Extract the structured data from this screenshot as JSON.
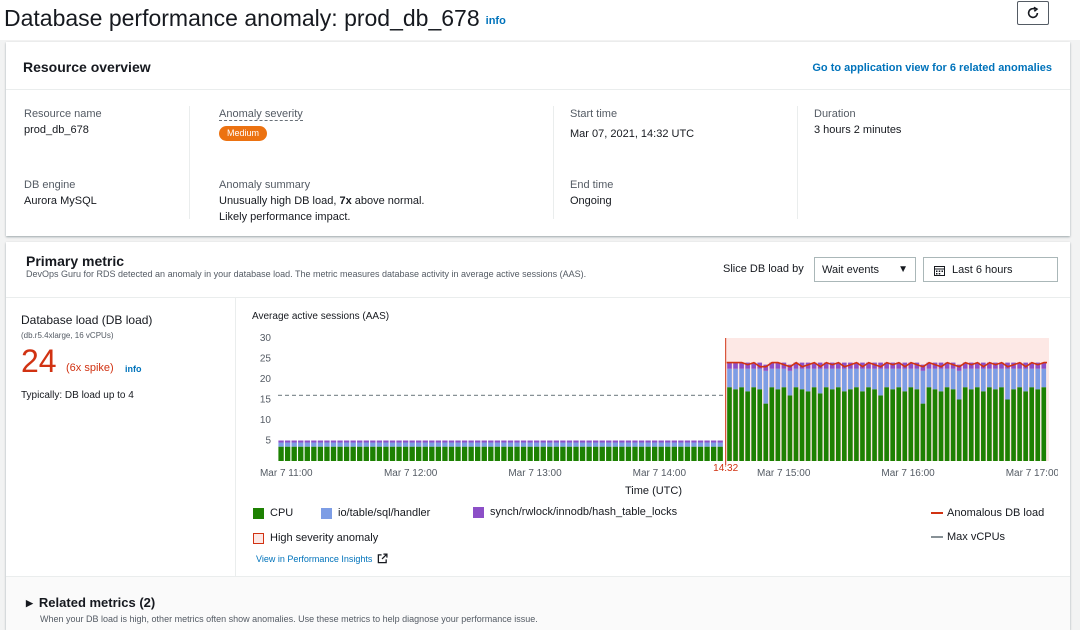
{
  "page": {
    "title": "Database performance anomaly: prod_db_678",
    "info": "info"
  },
  "overview": {
    "title": "Resource overview",
    "related_link": "Go to application view for 6 related anomalies",
    "resource_name_label": "Resource name",
    "resource_name": "prod_db_678",
    "db_engine_label": "DB engine",
    "db_engine": "Aurora MySQL",
    "severity_label": "Anomaly severity",
    "severity": "Medium",
    "summary_label": "Anomaly summary",
    "summary_pre": "Unusually high DB load, ",
    "summary_bold": "7x",
    "summary_post": " above normal.",
    "summary_line2": "Likely performance impact.",
    "start_label": "Start time",
    "start": "Mar 07, 2021, 14:32 UTC",
    "end_label": "End time",
    "end": "Ongoing",
    "duration_label": "Duration",
    "duration": "3 hours 2 minutes"
  },
  "primary": {
    "title": "Primary metric",
    "desc": "DevOps Guru for RDS detected an anomaly in your database load. The metric measures database activity in average active sessions (AAS).",
    "slice_label": "Slice DB load by",
    "slice_value": "Wait events",
    "range_value": "Last 6 hours",
    "metric_name": "Database load (DB load)",
    "metric_sub": "(db.r5.4xlarge, 16 vCPUs)",
    "metric_value": "24",
    "spike": "(6x spike)",
    "info": "info",
    "typical": "Typically: DB load up to 4",
    "view_link": "View in Performance Insights"
  },
  "legend": {
    "cpu": "CPU",
    "io": "io/table/sql/handler",
    "synch": "synch/rwlock/innodb/hash_table_locks",
    "anomalous": "Anomalous DB load",
    "high_sev": "High severity anomaly",
    "max_vcpus": "Max vCPUs"
  },
  "colors": {
    "cpu": "#1d8102",
    "io": "#7d9de5",
    "synch": "#8c4fc7",
    "anomaly_line": "#d13212",
    "anomaly_fill": "#fde8e5",
    "max_line": "#879196"
  },
  "related": {
    "title": "Related metrics (2)",
    "desc": "When your DB load is high, other metrics often show anomalies. Use these metrics to help diagnose your performance issue."
  },
  "chart_data": {
    "type": "bar",
    "title": "Average active sessions (AAS)",
    "xlabel": "Time (UTC)",
    "ylabel": "",
    "ylim": [
      0,
      30
    ],
    "yticks": [
      5,
      10,
      15,
      20,
      25,
      30
    ],
    "xlim": [
      "11:00",
      "17:00"
    ],
    "x_ticks": [
      "Mar 7  11:00",
      "Mar 7  12:00",
      "Mar 7  13:00",
      "Mar 7  14:00",
      "Mar 7  15:00",
      "Mar 7  16:00",
      "Mar 7  17:00"
    ],
    "x_tick_times": [
      "11:00",
      "12:00",
      "13:00",
      "14:00",
      "15:00",
      "16:00",
      "17:00"
    ],
    "anomaly_start_label": "14:32",
    "anomaly_start_time": "14:32",
    "max_vcpus": 16,
    "stacked": true,
    "series": [
      {
        "name": "CPU",
        "before": 3.5,
        "after": [
          18,
          17.5,
          18,
          17,
          18,
          17.5,
          14,
          18,
          17.5,
          18,
          16,
          18,
          17.5,
          17,
          18,
          16.5,
          18,
          17.5,
          18,
          17,
          17.5,
          18,
          17,
          18,
          17.5,
          16,
          18,
          17.5,
          18,
          17,
          18,
          17.5,
          14,
          18,
          17.5,
          17,
          18,
          17.5,
          15,
          18,
          17.5,
          18,
          17,
          18,
          17.5,
          18,
          15,
          17.5,
          18,
          17,
          18,
          17.5,
          18
        ]
      },
      {
        "name": "io/table/sql/handler",
        "before": 1.0,
        "after": [
          4.5,
          5,
          4.5,
          5.5,
          4.5,
          5,
          8,
          4.5,
          5,
          4.5,
          6,
          4.5,
          5,
          5.5,
          4.5,
          6,
          4.5,
          5,
          4.5,
          5.5,
          5,
          4.5,
          5.5,
          4.5,
          5,
          6.5,
          4.5,
          5,
          4.5,
          5.5,
          4.5,
          5,
          8,
          4.5,
          5,
          5.5,
          4.5,
          5,
          7,
          4.5,
          5,
          4.5,
          5.5,
          4.5,
          5,
          4.5,
          7.5,
          5,
          4.5,
          5.5,
          4.5,
          5,
          4.5
        ]
      },
      {
        "name": "synch/rwlock/innodb/hash_table_locks",
        "before": 0.5,
        "after": 1.5
      }
    ],
    "anomalous_db_load_line": [
      24,
      24,
      24,
      23.5,
      24,
      23,
      23,
      24,
      24,
      23.5,
      23,
      24,
      23,
      23.5,
      24,
      23,
      24,
      23.5,
      24,
      23,
      23.5,
      24,
      23,
      24,
      23.5,
      23,
      24,
      23.5,
      24,
      23,
      24,
      23.5,
      23,
      24,
      23.5,
      23,
      24,
      23.5,
      23,
      24,
      23.5,
      24,
      23,
      24,
      23.5,
      24,
      23,
      23.5,
      24,
      23,
      24,
      23.5,
      24
    ]
  }
}
